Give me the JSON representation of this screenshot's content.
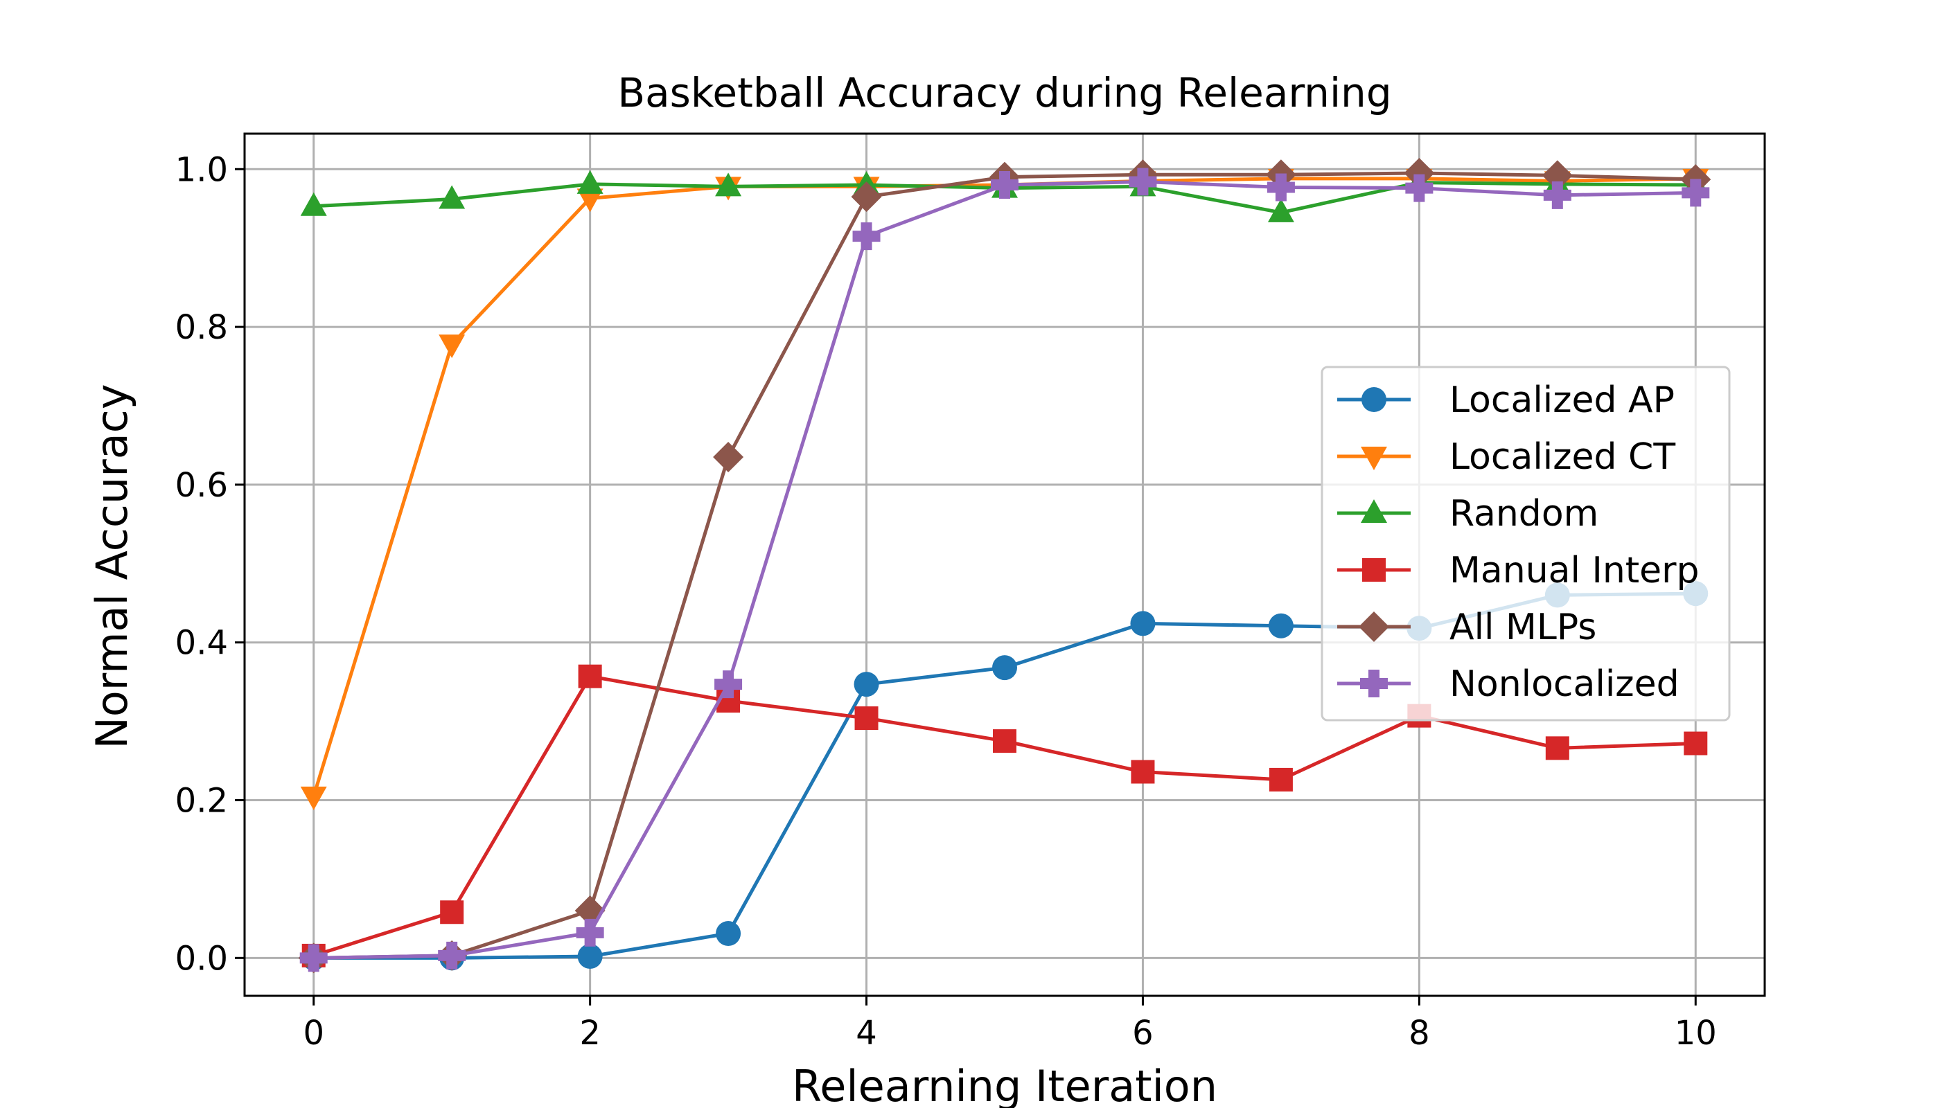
{
  "chart_data": {
    "type": "line",
    "title": "Basketball Accuracy during Relearning",
    "xlabel": "Relearning Iteration",
    "ylabel": "Normal Accuracy",
    "xlim": [
      -0.5,
      10.5
    ],
    "ylim": [
      -0.048,
      1.045
    ],
    "x_ticks": [
      0,
      2,
      4,
      6,
      8,
      10
    ],
    "y_ticks": [
      0.0,
      0.2,
      0.4,
      0.6,
      0.8,
      1.0
    ],
    "x_tick_labels": [
      "0",
      "2",
      "4",
      "6",
      "8",
      "10"
    ],
    "y_tick_labels": [
      "0.0",
      "0.2",
      "0.4",
      "0.6",
      "0.8",
      "1.0"
    ],
    "grid": true,
    "legend_position": "center-right",
    "x": [
      0,
      1,
      2,
      3,
      4,
      5,
      6,
      7,
      8,
      9,
      10
    ],
    "series": [
      {
        "name": "Localized AP",
        "color": "#1f77b4",
        "marker": "circle",
        "values": [
          0.0,
          0.0,
          0.002,
          0.031,
          0.347,
          0.368,
          0.424,
          0.421,
          0.418,
          0.46,
          0.462
        ]
      },
      {
        "name": "Localized CT",
        "color": "#ff7f0e",
        "marker": "triangle-down",
        "values": [
          0.205,
          0.778,
          0.963,
          0.978,
          0.978,
          0.98,
          0.985,
          0.988,
          0.988,
          0.985,
          0.988
        ]
      },
      {
        "name": "Random",
        "color": "#2ca02c",
        "marker": "triangle-up",
        "values": [
          0.953,
          0.962,
          0.981,
          0.978,
          0.98,
          0.976,
          0.978,
          0.945,
          0.983,
          0.981,
          0.98
        ]
      },
      {
        "name": "Manual Interp",
        "color": "#d62728",
        "marker": "square",
        "values": [
          0.003,
          0.058,
          0.357,
          0.326,
          0.304,
          0.275,
          0.236,
          0.226,
          0.307,
          0.266,
          0.272
        ]
      },
      {
        "name": "All MLPs",
        "color": "#8c564b",
        "marker": "diamond",
        "values": [
          0.0,
          0.003,
          0.06,
          0.635,
          0.965,
          0.99,
          0.993,
          0.993,
          0.995,
          0.992,
          0.987
        ]
      },
      {
        "name": "Nonlocalized",
        "color": "#9467bd",
        "marker": "plus",
        "values": [
          0.0,
          0.003,
          0.032,
          0.347,
          0.915,
          0.98,
          0.984,
          0.977,
          0.976,
          0.967,
          0.97
        ]
      }
    ]
  }
}
